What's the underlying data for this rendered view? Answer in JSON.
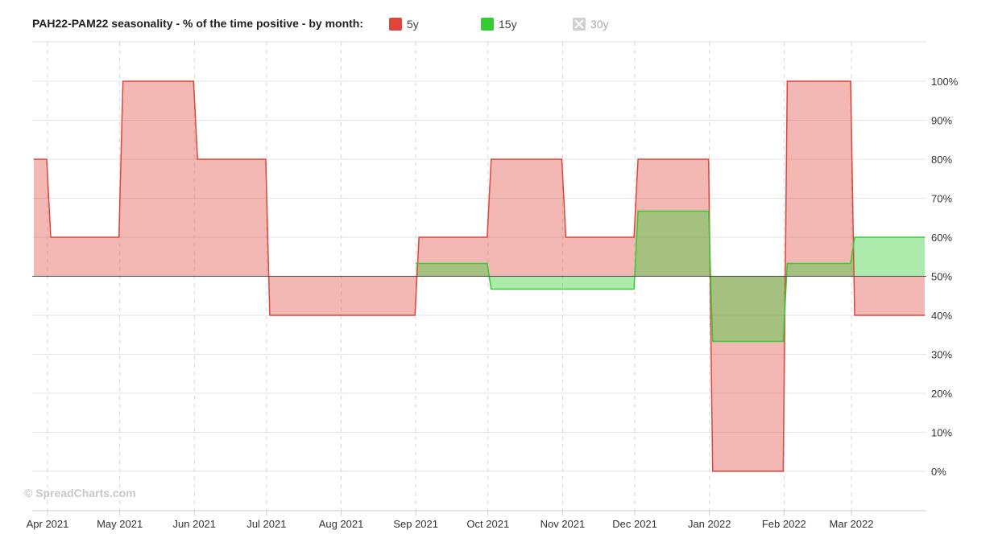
{
  "header": {
    "title": "PAH22-PAM22 seasonality - % of the time positive - by month:",
    "legend": [
      {
        "label": "5y",
        "color": "#e0443a",
        "active": true
      },
      {
        "label": "15y",
        "color": "#33cc33",
        "active": true
      },
      {
        "label": "30y",
        "color": "#cccccc",
        "active": false
      }
    ]
  },
  "watermark": "© SpreadCharts.com",
  "chart_data": {
    "type": "area",
    "title": "PAH22-PAM22 seasonality - % of the time positive - by month:",
    "xlabel": "",
    "ylabel": "",
    "x_ticks": [
      "Apr 2021",
      "May 2021",
      "Jun 2021",
      "Jul 2021",
      "Aug 2021",
      "Sep 2021",
      "Oct 2021",
      "Nov 2021",
      "Dec 2021",
      "Jan 2022",
      "Feb 2022",
      "Mar 2022"
    ],
    "y_ticks": [
      "0%",
      "10%",
      "20%",
      "30%",
      "40%",
      "50%",
      "60%",
      "70%",
      "80%",
      "90%",
      "100%"
    ],
    "ylim": [
      -10,
      110
    ],
    "baseline": 50,
    "grid": true,
    "legend_position": "top",
    "series": [
      {
        "name": "5y",
        "color": "#e0443a",
        "segments": [
          {
            "from": "2021-03-22",
            "to": "2021-03-31",
            "value": 80
          },
          {
            "from": "2021-04-01",
            "to": "2021-04-30",
            "value": 60
          },
          {
            "from": "2021-05-01",
            "to": "2021-05-31",
            "value": 100
          },
          {
            "from": "2021-06-01",
            "to": "2021-06-30",
            "value": 80
          },
          {
            "from": "2021-07-01",
            "to": "2021-08-31",
            "value": 40
          },
          {
            "from": "2021-09-01",
            "to": "2021-09-30",
            "value": 60
          },
          {
            "from": "2021-10-01",
            "to": "2021-10-31",
            "value": 80
          },
          {
            "from": "2021-11-01",
            "to": "2021-11-30",
            "value": 60
          },
          {
            "from": "2021-12-01",
            "to": "2021-12-31",
            "value": 80
          },
          {
            "from": "2022-01-01",
            "to": "2022-01-31",
            "value": 0
          },
          {
            "from": "2022-02-01",
            "to": "2022-02-28",
            "value": 100
          },
          {
            "from": "2022-03-01",
            "to": "2022-03-31",
            "value": 40
          }
        ]
      },
      {
        "name": "15y",
        "color": "#33cc33",
        "segments": [
          {
            "from": "2021-09-01",
            "to": "2021-09-30",
            "value": 53.3
          },
          {
            "from": "2021-10-01",
            "to": "2021-11-30",
            "value": 46.7
          },
          {
            "from": "2021-12-01",
            "to": "2021-12-31",
            "value": 66.7
          },
          {
            "from": "2022-01-01",
            "to": "2022-01-31",
            "value": 33.3
          },
          {
            "from": "2022-02-01",
            "to": "2022-02-28",
            "value": 53.3
          },
          {
            "from": "2022-03-01",
            "to": "2022-03-31",
            "value": 60
          }
        ]
      }
    ]
  }
}
